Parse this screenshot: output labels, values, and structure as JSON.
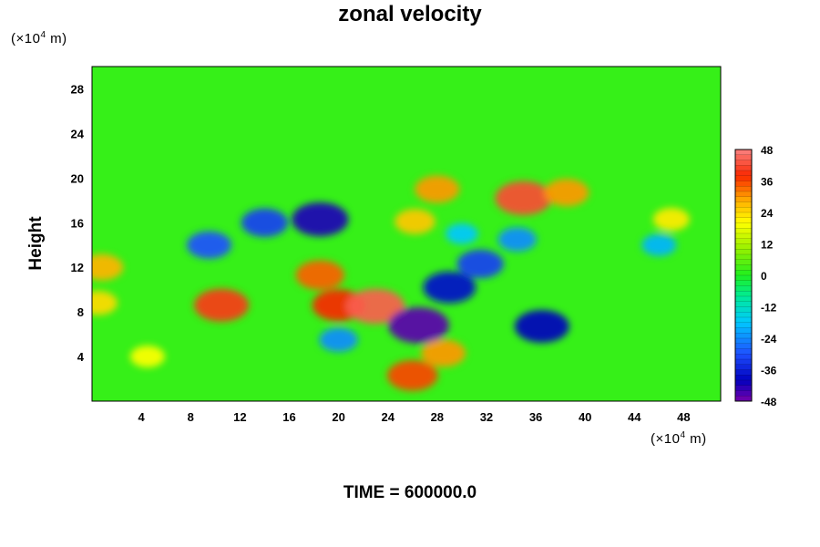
{
  "chart_data": {
    "type": "heatmap",
    "title": "zonal velocity",
    "ylabel": "Height",
    "xlabel": "",
    "x_unit": "(×10",
    "y_unit": "(×10",
    "unit_exp": "4",
    "unit_tail": " m)",
    "footer": "TIME = 600000.0",
    "xlim": [
      0,
      51
    ],
    "ylim": [
      0,
      30
    ],
    "x_ticks": [
      4,
      8,
      12,
      16,
      20,
      24,
      28,
      32,
      36,
      40,
      44,
      48
    ],
    "y_ticks": [
      4,
      8,
      12,
      16,
      20,
      24,
      28
    ],
    "colorbar": {
      "min": -48,
      "max": 48,
      "ticks": [
        48,
        36,
        24,
        12,
        0,
        -12,
        -24,
        -36,
        -48
      ]
    },
    "background_value": 2,
    "features": [
      {
        "x": 10.5,
        "y": 8.6,
        "value": 40
      },
      {
        "x": 20.0,
        "y": 8.6,
        "value": 38
      },
      {
        "x": 23.0,
        "y": 8.5,
        "value": 44
      },
      {
        "x": 18.5,
        "y": 11.3,
        "value": 34
      },
      {
        "x": 35.0,
        "y": 18.2,
        "value": 42
      },
      {
        "x": 38.5,
        "y": 18.7,
        "value": 30
      },
      {
        "x": 28.0,
        "y": 19.0,
        "value": 30
      },
      {
        "x": 26.2,
        "y": 16.1,
        "value": 26
      },
      {
        "x": 26.0,
        "y": 2.3,
        "value": 36
      },
      {
        "x": 28.5,
        "y": 4.3,
        "value": 30
      },
      {
        "x": 0.8,
        "y": 12.0,
        "value": 28
      },
      {
        "x": 0.5,
        "y": 8.8,
        "value": 24
      },
      {
        "x": 4.5,
        "y": 4.0,
        "value": 20
      },
      {
        "x": 47.0,
        "y": 16.3,
        "value": 22
      },
      {
        "x": 18.5,
        "y": 16.3,
        "value": -42
      },
      {
        "x": 14.0,
        "y": 16.0,
        "value": -32
      },
      {
        "x": 9.5,
        "y": 14.0,
        "value": -30
      },
      {
        "x": 29.0,
        "y": 10.2,
        "value": -38
      },
      {
        "x": 31.5,
        "y": 12.3,
        "value": -32
      },
      {
        "x": 26.5,
        "y": 6.8,
        "value": -46
      },
      {
        "x": 36.5,
        "y": 6.7,
        "value": -40
      },
      {
        "x": 34.5,
        "y": 14.5,
        "value": -24
      },
      {
        "x": 46.0,
        "y": 14.0,
        "value": -20
      },
      {
        "x": 20.0,
        "y": 5.5,
        "value": -24
      },
      {
        "x": 30.0,
        "y": 15.0,
        "value": -18
      }
    ]
  }
}
